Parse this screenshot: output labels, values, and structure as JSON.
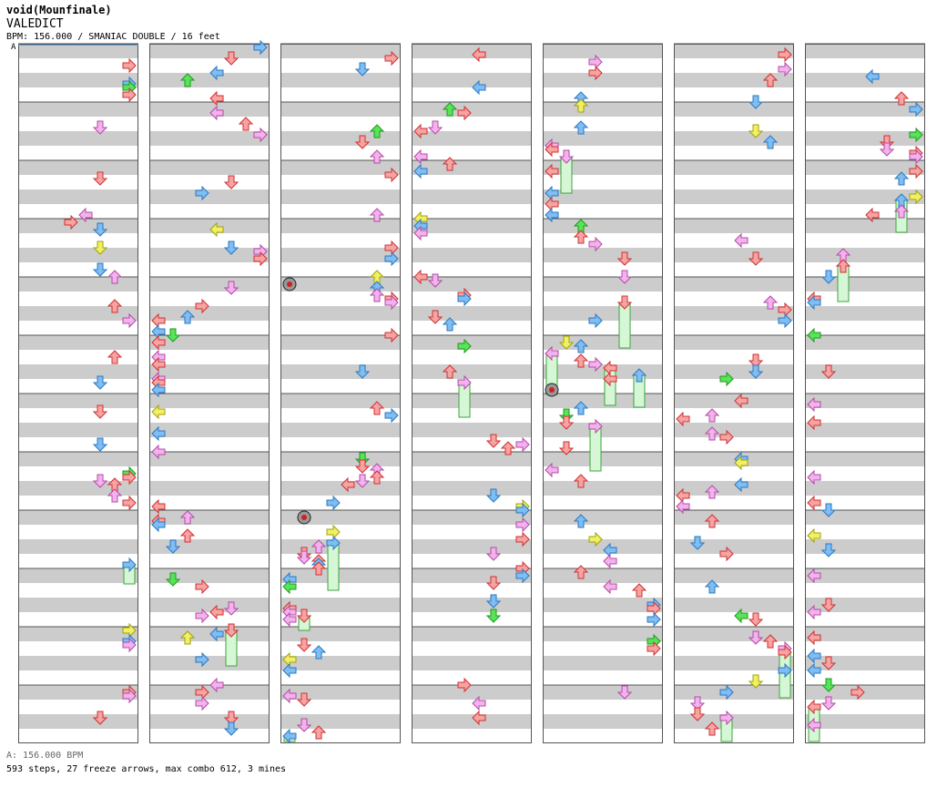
{
  "header": {
    "artist": "void(Mounfinale)",
    "title": "VALEDICT",
    "bpm_line": "BPM: 156.000 / SMANIAC DOUBLE / 16 feet"
  },
  "marker_label": "A",
  "footer": {
    "bpm_change": "A: 156.000 BPM",
    "stats": "593 steps, 27 freeze arrows, max combo 612, 3 mines"
  },
  "chart_data": {
    "type": "step-chart",
    "lanes": [
      "left",
      "down",
      "up",
      "right",
      "left",
      "down",
      "up",
      "right"
    ],
    "column_count": 7,
    "measures_per_column": 12,
    "colors": {
      "quarter_fill": "#f6a3a3",
      "quarter_stroke": "#d03030",
      "eighth_fill": "#7fbdf2",
      "eighth_stroke": "#2a78c2",
      "sixteenth_fill": "#f2b3ec",
      "sixteenth_stroke": "#b548a8",
      "other_fill": "#59e359",
      "other_stroke": "#1d9a1d",
      "odd_fill": "#f0f060",
      "odd_stroke": "#a0a010",
      "freeze_fill": "#d6f7d6",
      "freeze_stroke": "#3ea33e",
      "band": "#cccccc",
      "border": "#555555"
    }
  }
}
